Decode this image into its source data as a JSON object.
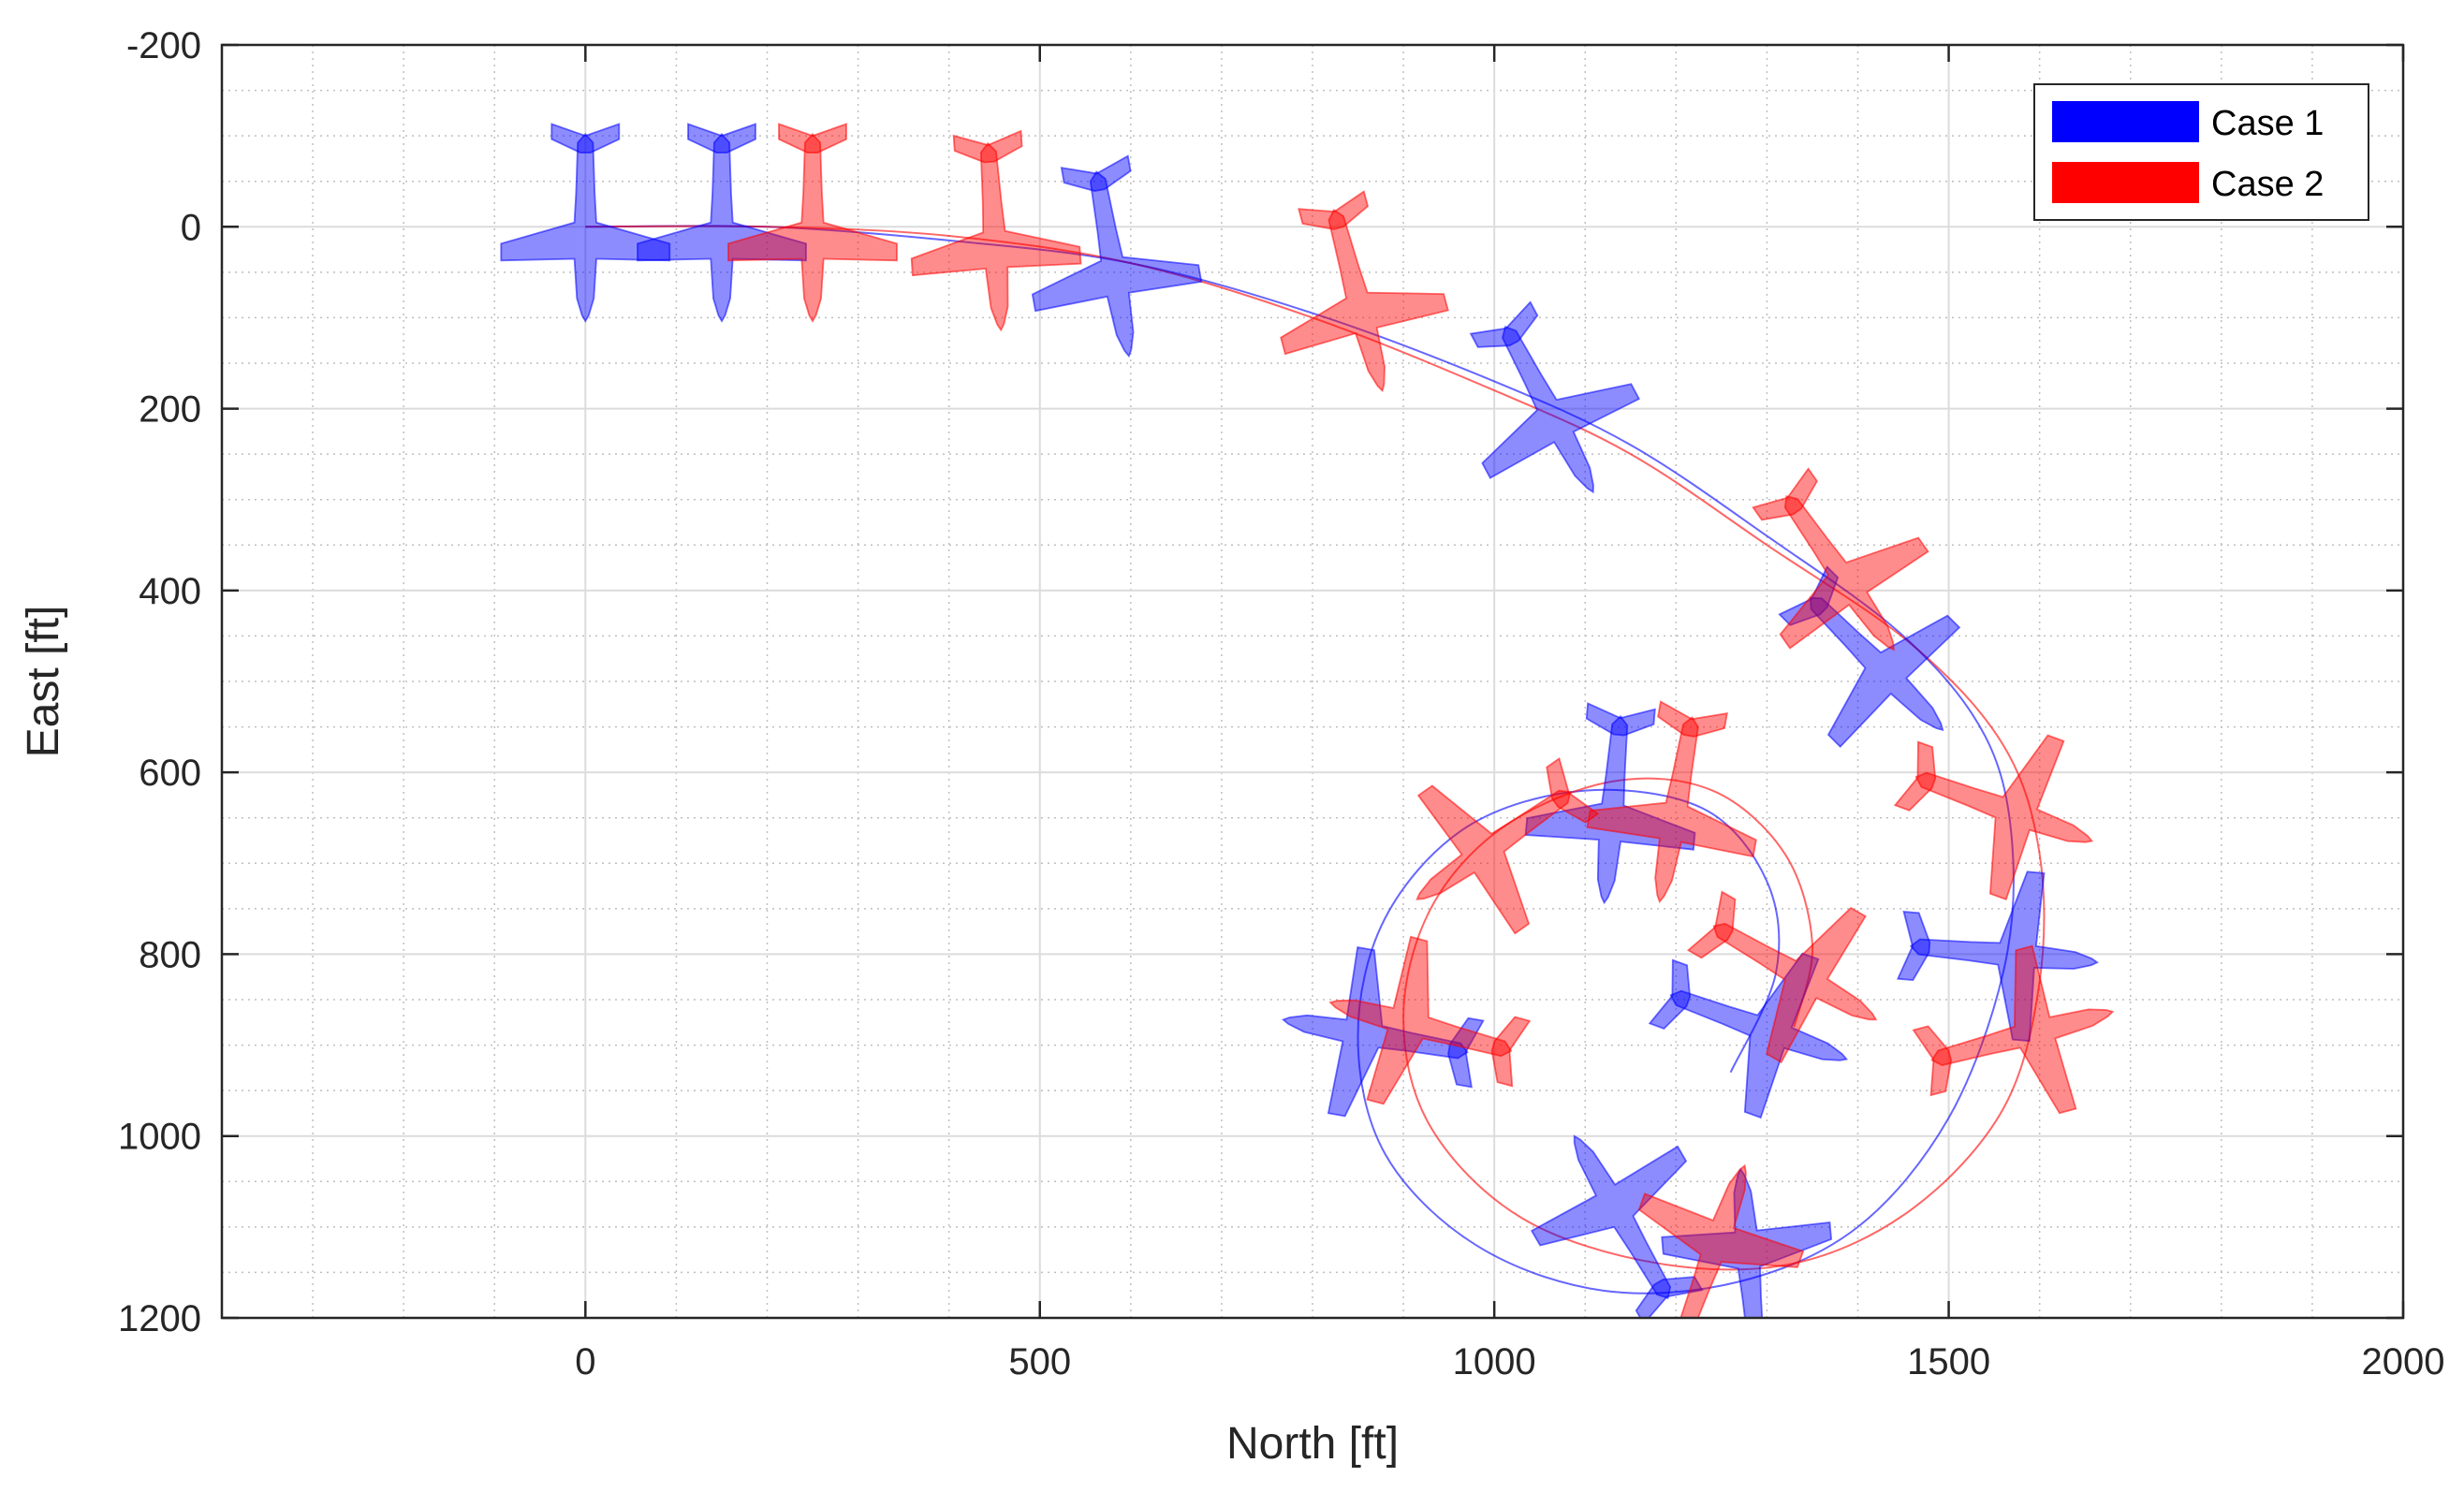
{
  "chart_data": {
    "type": "line",
    "title": "",
    "xlabel": "North [ft]",
    "ylabel": "East [ft]",
    "xlim": [
      -400,
      2000
    ],
    "ylim": [
      -200,
      1200
    ],
    "y_reversed": true,
    "grid": true,
    "minor_grid": true,
    "xticks": [
      0,
      500,
      1000,
      1500,
      2000
    ],
    "xtick_labels": [
      "0",
      "500",
      "1000",
      "1500",
      "2000"
    ],
    "yticks": [
      -200,
      0,
      200,
      400,
      600,
      800,
      1000,
      1200
    ],
    "ytick_labels": [
      "-200",
      "0",
      "200",
      "400",
      "600",
      "800",
      "1000",
      "1200"
    ],
    "legend_position": "top-right",
    "series": [
      {
        "name": "Case 1",
        "color": "#0000ff",
        "x": [
          0,
          200,
          400,
          600,
          800,
          1000,
          1150,
          1300,
          1450,
          1540,
          1570,
          1560,
          1500,
          1400,
          1270,
          1120,
          980,
          880,
          850,
          880,
          970,
          1100,
          1230,
          1300,
          1310,
          1260
        ],
        "y": [
          0,
          0,
          15,
          40,
          95,
          170,
          240,
          340,
          450,
          560,
          680,
          820,
          980,
          1100,
          1160,
          1170,
          1120,
          1020,
          890,
          760,
          660,
          620,
          640,
          720,
          820,
          930
        ]
      },
      {
        "name": "Case 2",
        "color": "#ff0000",
        "x": [
          0,
          200,
          400,
          600,
          800,
          1000,
          1150,
          1300,
          1460,
          1560,
          1600,
          1600,
          1560,
          1460,
          1330,
          1180,
          1030,
          930,
          900,
          930,
          1010,
          1130,
          1240,
          1320,
          1350,
          1330
        ],
        "y": [
          0,
          0,
          10,
          40,
          100,
          180,
          250,
          350,
          460,
          570,
          690,
          830,
          970,
          1080,
          1140,
          1140,
          1090,
          990,
          870,
          750,
          660,
          610,
          620,
          690,
          790,
          880
        ]
      }
    ],
    "aircraft_markers": [
      {
        "series": "Case 1",
        "x": 0,
        "y": 0,
        "heading": 90
      },
      {
        "series": "Case 1",
        "x": 150,
        "y": 0,
        "heading": 90
      },
      {
        "series": "Case 1",
        "x": 580,
        "y": 40,
        "heading": 80
      },
      {
        "series": "Case 1",
        "x": 1060,
        "y": 200,
        "heading": 62
      },
      {
        "series": "Case 1",
        "x": 1420,
        "y": 480,
        "heading": 45
      },
      {
        "series": "Case 1",
        "x": 1560,
        "y": 800,
        "heading": 5
      },
      {
        "series": "Case 1",
        "x": 1280,
        "y": 1140,
        "heading": -95
      },
      {
        "series": "Case 1",
        "x": 1140,
        "y": 1090,
        "heading": -120
      },
      {
        "series": "Case 1",
        "x": 870,
        "y": 890,
        "heading": -170
      },
      {
        "series": "Case 1",
        "x": 1130,
        "y": 640,
        "heading": -265
      },
      {
        "series": "Case 1",
        "x": 1290,
        "y": 880,
        "heading": -340
      },
      {
        "series": "Case 2",
        "x": 250,
        "y": 0,
        "heading": 90
      },
      {
        "series": "Case 2",
        "x": 450,
        "y": 10,
        "heading": 86
      },
      {
        "series": "Case 2",
        "x": 850,
        "y": 80,
        "heading": 75
      },
      {
        "series": "Case 2",
        "x": 1380,
        "y": 380,
        "heading": 55
      },
      {
        "series": "Case 2",
        "x": 1560,
        "y": 640,
        "heading": 20
      },
      {
        "series": "Case 2",
        "x": 1580,
        "y": 890,
        "heading": -15
      },
      {
        "series": "Case 2",
        "x": 1240,
        "y": 1130,
        "heading": -70
      },
      {
        "series": "Case 2",
        "x": 920,
        "y": 880,
        "heading": -165
      },
      {
        "series": "Case 2",
        "x": 1000,
        "y": 680,
        "heading": -215
      },
      {
        "series": "Case 2",
        "x": 1200,
        "y": 640,
        "heading": -260
      },
      {
        "series": "Case 2",
        "x": 1330,
        "y": 820,
        "heading": -330
      }
    ]
  }
}
